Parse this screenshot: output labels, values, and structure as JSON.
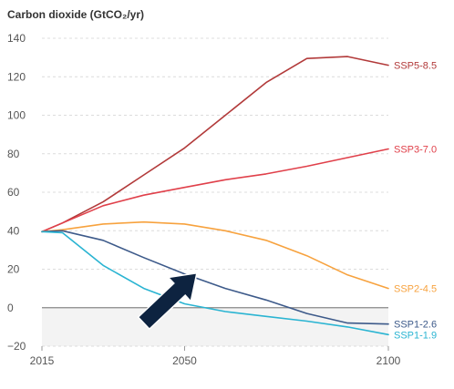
{
  "chart_data": {
    "type": "line",
    "title": "Carbon dioxide (GtCO₂/yr)",
    "xlabel": "",
    "ylabel": "",
    "xlim": [
      2015,
      2100
    ],
    "ylim": [
      -20,
      140
    ],
    "x_ticks": [
      "2015",
      "2050",
      "2100"
    ],
    "y_ticks": [
      "140",
      "120",
      "100",
      "80",
      "60",
      "40",
      "20",
      "0",
      "−20"
    ],
    "grid": true,
    "legend": "inline-right",
    "negative_region_shaded": true,
    "annotation": "dark-navy-arrow",
    "arrow_tail": [
      2040,
      -8
    ],
    "arrow_head": [
      2053,
      18
    ],
    "series": [
      {
        "name": "SSP5-8.5",
        "color": "#b23a3a",
        "x": [
          2015,
          2020,
          2030,
          2040,
          2050,
          2060,
          2070,
          2080,
          2090,
          2100
        ],
        "y": [
          39.5,
          44,
          55,
          69,
          83,
          100,
          117,
          129.5,
          130.5,
          126
        ]
      },
      {
        "name": "SSP3-7.0",
        "color": "#e0404a",
        "x": [
          2015,
          2020,
          2030,
          2040,
          2050,
          2060,
          2070,
          2080,
          2090,
          2100
        ],
        "y": [
          39.5,
          44,
          53,
          58.5,
          62.5,
          66.5,
          69.5,
          73.5,
          78,
          82.5
        ]
      },
      {
        "name": "SSP2-4.5",
        "color": "#f7a23e",
        "x": [
          2015,
          2020,
          2030,
          2040,
          2050,
          2060,
          2070,
          2080,
          2090,
          2100
        ],
        "y": [
          39.5,
          40.5,
          43.5,
          44.5,
          43.5,
          40,
          35,
          27,
          17,
          10
        ]
      },
      {
        "name": "SSP1-2.6",
        "color": "#3d5a8a",
        "x": [
          2015,
          2020,
          2030,
          2040,
          2050,
          2060,
          2070,
          2080,
          2090,
          2100
        ],
        "y": [
          39.5,
          40,
          35,
          26,
          17.5,
          10,
          4,
          -3,
          -8,
          -8.5
        ]
      },
      {
        "name": "SSP1-1.9",
        "color": "#2ab4d2",
        "x": [
          2015,
          2020,
          2030,
          2040,
          2050,
          2060,
          2070,
          2080,
          2090,
          2100
        ],
        "y": [
          39.5,
          39,
          22,
          10,
          2,
          -2,
          -4.5,
          -7,
          -10,
          -14
        ]
      }
    ]
  }
}
